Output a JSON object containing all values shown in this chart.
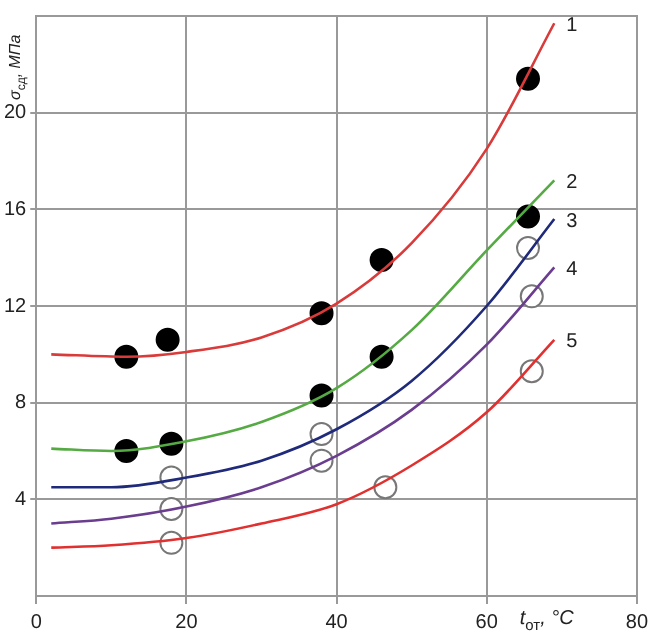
{
  "chart_data": {
    "type": "line",
    "xlabel": "t$_{от}$, °C",
    "ylabel": "σ$_{сд}$, МПа",
    "xlim": [
      0,
      80
    ],
    "xticks": [
      0,
      20,
      40,
      60,
      80
    ],
    "ylim": [
      0,
      24
    ],
    "yticks": [
      4,
      8,
      12,
      16,
      20
    ],
    "grid": true,
    "legend": false,
    "marker": "none",
    "line_style": "solid",
    "series": [
      {
        "name": "1",
        "color": "#d93a3a",
        "x": [
          2,
          12,
          20,
          30,
          40,
          50,
          60,
          69
        ],
        "values": [
          10.0,
          9.9,
          10.1,
          10.7,
          12.1,
          14.6,
          18.5,
          23.7
        ]
      },
      {
        "name": "2",
        "color": "#55aa44",
        "x": [
          2,
          10,
          20,
          30,
          40,
          50,
          60,
          69
        ],
        "values": [
          6.1,
          6.0,
          6.4,
          7.2,
          8.6,
          11.0,
          14.3,
          17.2
        ]
      },
      {
        "name": "3",
        "color": "#1f2a7a",
        "x": [
          2,
          10,
          20,
          30,
          40,
          50,
          60,
          69
        ],
        "values": [
          4.5,
          4.5,
          4.9,
          5.6,
          6.9,
          8.9,
          12.0,
          15.6
        ]
      },
      {
        "name": "4",
        "color": "#6a3d8f",
        "x": [
          2,
          10,
          20,
          30,
          40,
          50,
          60,
          69
        ],
        "values": [
          3.0,
          3.2,
          3.7,
          4.5,
          5.8,
          7.7,
          10.4,
          13.6
        ]
      },
      {
        "name": "5",
        "color": "#e03030",
        "x": [
          2,
          10,
          20,
          30,
          40,
          50,
          60,
          69
        ],
        "values": [
          2.0,
          2.1,
          2.4,
          3.0,
          3.8,
          5.4,
          7.6,
          10.6
        ]
      },
      {
        "type": "scatter",
        "marker": "circle",
        "color": "#000000",
        "x": [
          12,
          17.5,
          38,
          46,
          65.5
        ],
        "values": [
          9.9,
          10.6,
          11.7,
          13.9,
          21.4
        ]
      },
      {
        "type": "scatter",
        "marker": "circle",
        "color": "#000000",
        "x": [
          12,
          18,
          38,
          46,
          65.5
        ],
        "values": [
          6.0,
          6.3,
          8.3,
          9.9,
          15.7
        ]
      },
      {
        "type": "scatter",
        "marker": "circle",
        "color": "#ffffff",
        "x": [
          18,
          38,
          65.5
        ],
        "values": [
          4.9,
          6.7,
          14.4
        ]
      },
      {
        "type": "scatter",
        "marker": "circle",
        "color": "#ffffff",
        "x": [
          18,
          38,
          66
        ],
        "values": [
          3.6,
          5.6,
          12.4
        ]
      },
      {
        "type": "scatter",
        "marker": "circle",
        "color": "#ffffff",
        "x": [
          18,
          46.5,
          66
        ],
        "values": [
          2.2,
          4.5,
          9.3
        ]
      }
    ]
  }
}
